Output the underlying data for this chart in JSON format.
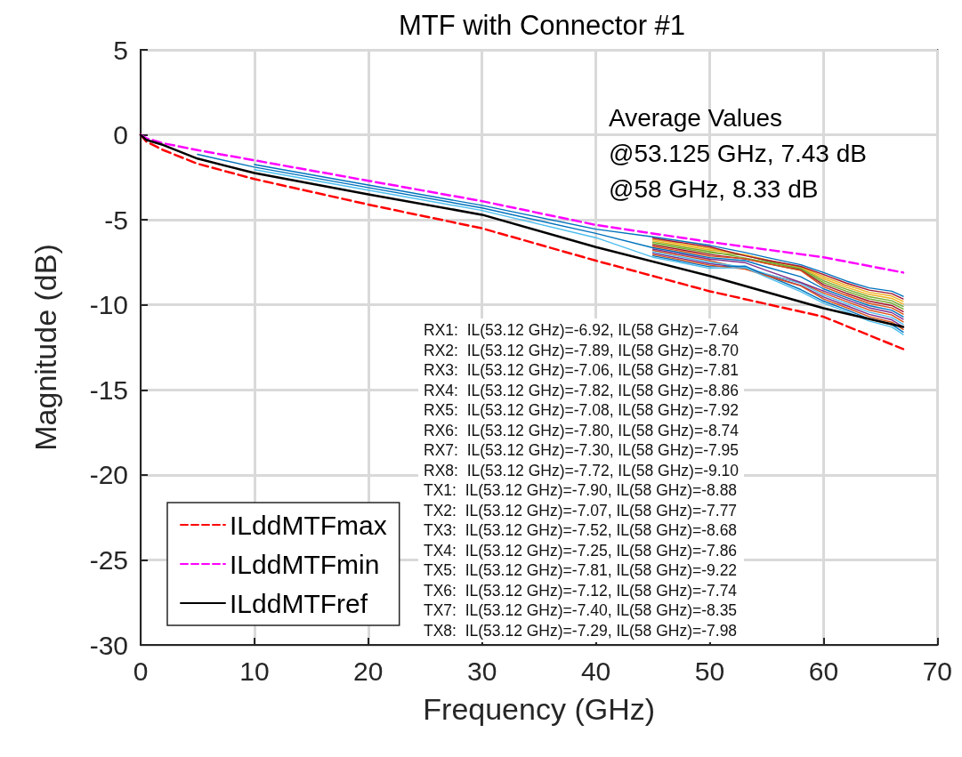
{
  "chart_data": {
    "type": "line",
    "title": "MTF with Connector #1",
    "xlabel": "Frequency (GHz)",
    "ylabel": "Magnitude (dB)",
    "x": [
      5,
      10,
      20,
      30,
      40,
      45,
      50,
      53.12,
      55,
      58,
      60,
      62,
      64,
      66,
      67
    ],
    "series": [
      {
        "name": "ILddMTFmax",
        "color": "#ff0000",
        "line_style": "dashed",
        "x": [
          0,
          0.5,
          2,
          5,
          10,
          20,
          30,
          40,
          50,
          60,
          67
        ],
        "values": [
          0,
          -0.4,
          -0.9,
          -1.7,
          -2.6,
          -4.1,
          -5.5,
          -7.4,
          -9.2,
          -10.7,
          -12.6
        ]
      },
      {
        "name": "ILddMTFmin",
        "color": "#ff00ff",
        "line_style": "dashed",
        "x": [
          0,
          0.5,
          2,
          5,
          10,
          20,
          30,
          40,
          50,
          60,
          67
        ],
        "values": [
          0,
          -0.2,
          -0.5,
          -0.9,
          -1.5,
          -2.7,
          -3.9,
          -5.3,
          -6.3,
          -7.2,
          -8.1
        ]
      },
      {
        "name": "ILddMTFref",
        "color": "#000000",
        "line_style": "solid",
        "x": [
          0,
          0.5,
          2,
          5,
          10,
          20,
          30,
          40,
          50,
          60,
          67
        ],
        "values": [
          0,
          -0.3,
          -0.6,
          -1.4,
          -2.25,
          -3.5,
          -4.7,
          -6.6,
          -8.3,
          -10.2,
          -11.3
        ]
      },
      {
        "color": "#0072bd",
        "values": [
          null,
          -1.75,
          -2.95,
          -4.15,
          -5.55,
          -6.0,
          -6.5,
          -6.92,
          -7.21,
          -7.64,
          -8.1,
          -8.6,
          -9.0,
          -9.2,
          -9.5
        ]
      },
      {
        "color": "#d95319",
        "values": [
          null,
          null,
          null,
          null,
          null,
          -6.8,
          -7.4,
          -7.89,
          -8.21,
          -8.7,
          -9.3,
          -9.8,
          -10.3,
          -10.6,
          -11.0
        ]
      },
      {
        "color": "#edb120",
        "values": [
          null,
          null,
          null,
          null,
          null,
          -6.24,
          -6.77,
          -7.06,
          -7.36,
          -7.81,
          -8.46,
          -8.96,
          -9.39,
          -9.62,
          -9.95
        ]
      },
      {
        "color": "#7e2f8e",
        "values": [
          null,
          null,
          null,
          null,
          null,
          -6.96,
          -7.58,
          -7.82,
          -8.24,
          -8.86,
          -9.54,
          -10.04,
          -10.56,
          -10.88,
          -11.3
        ]
      },
      {
        "color": "#77ac30",
        "values": [
          null,
          null,
          null,
          null,
          null,
          -6.4,
          -6.95,
          -7.08,
          -7.42,
          -7.92,
          -8.7,
          -9.2,
          -9.65,
          -9.9,
          -10.25
        ]
      },
      {
        "color": "#4dbeee",
        "values": [
          null,
          null,
          null,
          null,
          null,
          -6.88,
          -7.49,
          -7.8,
          -8.18,
          -8.74,
          -9.42,
          -9.92,
          -10.43,
          -10.74,
          -11.15
        ]
      },
      {
        "color": "#a2142f",
        "values": [
          null,
          null,
          null,
          null,
          null,
          -6.48,
          -7.04,
          -7.3,
          -7.56,
          -7.95,
          -8.82,
          -9.32,
          -9.78,
          -10.04,
          -10.4
        ]
      },
      {
        "color": "#0072bd",
        "values": [
          null,
          null,
          null,
          null,
          null,
          -7.12,
          -7.76,
          -7.72,
          -8.27,
          -9.1,
          -9.78,
          -10.28,
          -10.82,
          -11.16,
          -11.6
        ]
      },
      {
        "color": "#d95319",
        "values": [
          null,
          null,
          null,
          null,
          null,
          -7.04,
          -7.67,
          -7.9,
          -8.29,
          -8.88,
          -9.66,
          -10.16,
          -10.69,
          -11.02,
          -11.45
        ]
      },
      {
        "color": "#edb120",
        "values": [
          null,
          null,
          null,
          null,
          null,
          -6.16,
          -6.68,
          -7.07,
          -7.35,
          -7.77,
          -8.34,
          -8.84,
          -9.26,
          -9.48,
          -9.8
        ]
      },
      {
        "color": "#7e2f8e",
        "values": [
          null,
          null,
          null,
          null,
          null,
          -6.72,
          -7.31,
          -7.52,
          -7.98,
          -8.68,
          -9.18,
          -9.68,
          -10.17,
          -10.46,
          -10.85
        ]
      },
      {
        "color": "#77ac30",
        "values": [
          null,
          null,
          null,
          null,
          null,
          -6.32,
          -6.86,
          -7.25,
          -7.49,
          -7.86,
          -8.58,
          -9.08,
          -9.52,
          -9.76,
          -10.1
        ]
      },
      {
        "color": "#4dbeee",
        "values": [
          null,
          -2.05,
          -3.25,
          -4.45,
          -6.05,
          -7.2,
          -7.85,
          -7.81,
          -8.37,
          -9.22,
          -9.9,
          -10.4,
          -10.95,
          -11.3,
          -11.75
        ]
      },
      {
        "color": "#a2142f",
        "values": [
          null,
          null,
          null,
          null,
          null,
          -6.08,
          -6.59,
          -7.12,
          -7.37,
          -7.74,
          -8.22,
          -8.72,
          -9.13,
          -9.34,
          -9.65
        ]
      },
      {
        "color": "#0072bd",
        "values": [
          -1.15,
          -1.9,
          -3.1,
          -4.3,
          -5.8,
          -6.64,
          -7.22,
          -7.4,
          -7.78,
          -8.35,
          -9.06,
          -9.56,
          -10.04,
          -10.32,
          -10.7
        ]
      },
      {
        "color": "#d95319",
        "values": [
          null,
          null,
          null,
          null,
          null,
          -6.56,
          -7.13,
          -7.29,
          -7.57,
          -7.98,
          -8.94,
          -9.44,
          -9.91,
          -10.18,
          -10.55
        ]
      }
    ],
    "xlim": [
      0,
      70
    ],
    "xticks": [
      0,
      10,
      20,
      30,
      40,
      50,
      60,
      70
    ],
    "ylim": [
      -30,
      5
    ],
    "yticks": [
      -30,
      -25,
      -20,
      -15,
      -10,
      -5,
      0,
      5
    ],
    "grid": true,
    "legend": "bottom left",
    "marker": "none",
    "annotations": [
      "Average Values\n@53.125 GHz, 7.43 dB\n@58 GHz, 8.33 dB",
      "RX1:  IL(53.12 GHz)=-6.92, IL(58 GHz)=-7.64\nRX2:  IL(53.12 GHz)=-7.89, IL(58 GHz)=-8.70\nRX3:  IL(53.12 GHz)=-7.06, IL(58 GHz)=-7.81\nRX4:  IL(53.12 GHz)=-7.82, IL(58 GHz)=-8.86\nRX5:  IL(53.12 GHz)=-7.08, IL(58 GHz)=-7.92\nRX6:  IL(53.12 GHz)=-7.80, IL(58 GHz)=-8.74\nRX7:  IL(53.12 GHz)=-7.30, IL(58 GHz)=-7.95\nRX8:  IL(53.12 GHz)=-7.72, IL(58 GHz)=-9.10\nTX1:  IL(53.12 GHz)=-7.90, IL(58 GHz)=-8.88\nTX2:  IL(53.12 GHz)=-7.07, IL(58 GHz)=-7.77\nTX3:  IL(53.12 GHz)=-7.52, IL(58 GHz)=-8.68\nTX4:  IL(53.12 GHz)=-7.25, IL(58 GHz)=-7.86\nTX5:  IL(53.12 GHz)=-7.81, IL(58 GHz)=-9.22\nTX6:  IL(53.12 GHz)=-7.12, IL(58 GHz)=-7.74\nTX7:  IL(53.12 GHz)=-7.40, IL(58 GHz)=-8.35\nTX8:  IL(53.12 GHz)=-7.29, IL(58 GHz)=-7.98"
    ]
  }
}
